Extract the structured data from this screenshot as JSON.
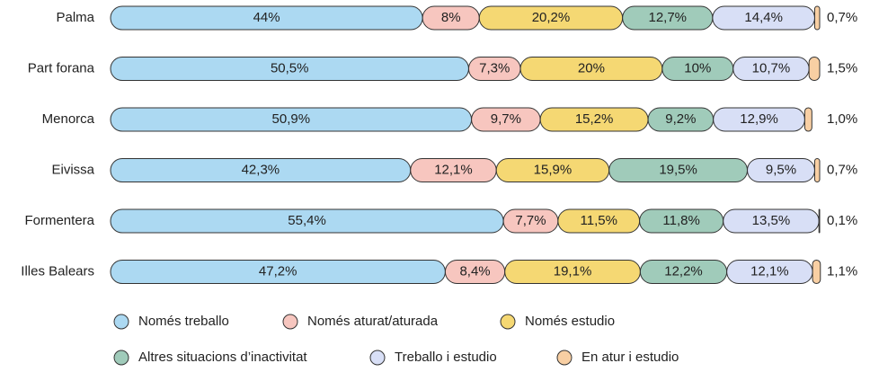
{
  "chart_data": {
    "type": "stacked-bar",
    "categories": [
      "Palma",
      "Part forana",
      "Menorca",
      "Eivissa",
      "Formentera",
      "Illes Balears"
    ],
    "series": [
      {
        "name": "Només treballo",
        "color": "#acd9f2",
        "values": [
          44,
          50.5,
          50.9,
          42.3,
          55.4,
          47.2
        ],
        "value_labels": [
          "44%",
          "50,5%",
          "50,9%",
          "42,3%",
          "55,4%",
          "47,2%"
        ]
      },
      {
        "name": "Només aturat/aturada",
        "color": "#f7c6bf",
        "values": [
          8,
          7.3,
          9.7,
          12.1,
          7.7,
          8.4
        ],
        "value_labels": [
          "8%",
          "7,3%",
          "9,7%",
          "12,1%",
          "7,7%",
          "8,4%"
        ]
      },
      {
        "name": "Només estudio",
        "color": "#f5d873",
        "values": [
          20.2,
          20,
          15.2,
          15.9,
          11.5,
          19.1
        ],
        "value_labels": [
          "20,2%",
          "20%",
          "15,2%",
          "15,9%",
          "11,5%",
          "19,1%"
        ]
      },
      {
        "name": "Altres situacions d’inactivitat",
        "color": "#a0cbba",
        "values": [
          12.7,
          10,
          9.2,
          19.5,
          11.8,
          12.2
        ],
        "value_labels": [
          "12,7%",
          "10%",
          "9,2%",
          "19,5%",
          "11,8%",
          "12,2%"
        ]
      },
      {
        "name": "Treballo i estudio",
        "color": "#d8dff6",
        "values": [
          14.4,
          10.7,
          12.9,
          9.5,
          13.5,
          12.1
        ],
        "value_labels": [
          "14,4%",
          "10,7%",
          "12,9%",
          "9,5%",
          "13,5%",
          "12,1%"
        ]
      },
      {
        "name": "En atur i estudio",
        "color": "#f8cfa3",
        "values": [
          0.7,
          1.5,
          1.0,
          0.7,
          0.1,
          1.1
        ],
        "value_labels": [
          "0,7%",
          "1,5%",
          "1,0%",
          "0,7%",
          "0,1%",
          "1,1%"
        ]
      }
    ]
  }
}
